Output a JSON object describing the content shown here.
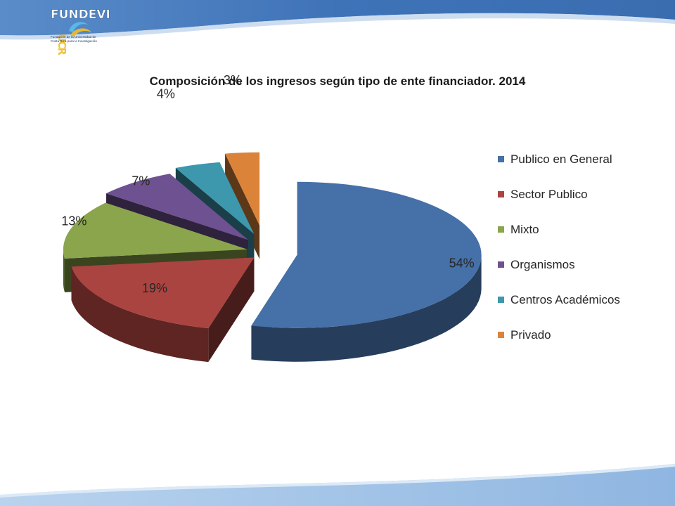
{
  "logo": {
    "name": "FUNDEVI",
    "acronym": "UCR",
    "tagline_line1": "Fundación de la Universidad de",
    "tagline_line2": "Costa Rica para la Investigación"
  },
  "colors": {
    "header_band": "#3f73b8",
    "footer_band": "#9ec0e6",
    "Publico en General": "#4570a8",
    "Sector Publico": "#aa4440",
    "Mixto": "#8aa54c",
    "Organismos": "#6e5191",
    "Centros Académicos": "#3d97ad",
    "Privado": "#db8439"
  },
  "chart_data": {
    "type": "pie",
    "style": "3d-exploded",
    "title": "Composición  de los ingresos según tipo de ente financiador. 2014",
    "unit": "%",
    "legend_position": "right",
    "categories": [
      "Publico en General",
      "Sector Publico",
      "Mixto",
      "Organismos",
      "Centros Académicos",
      "Privado"
    ],
    "values": [
      54,
      19,
      13,
      7,
      4,
      3
    ],
    "data_labels": [
      "54%",
      "19%",
      "13%",
      "7%",
      "4%",
      "3%"
    ]
  }
}
